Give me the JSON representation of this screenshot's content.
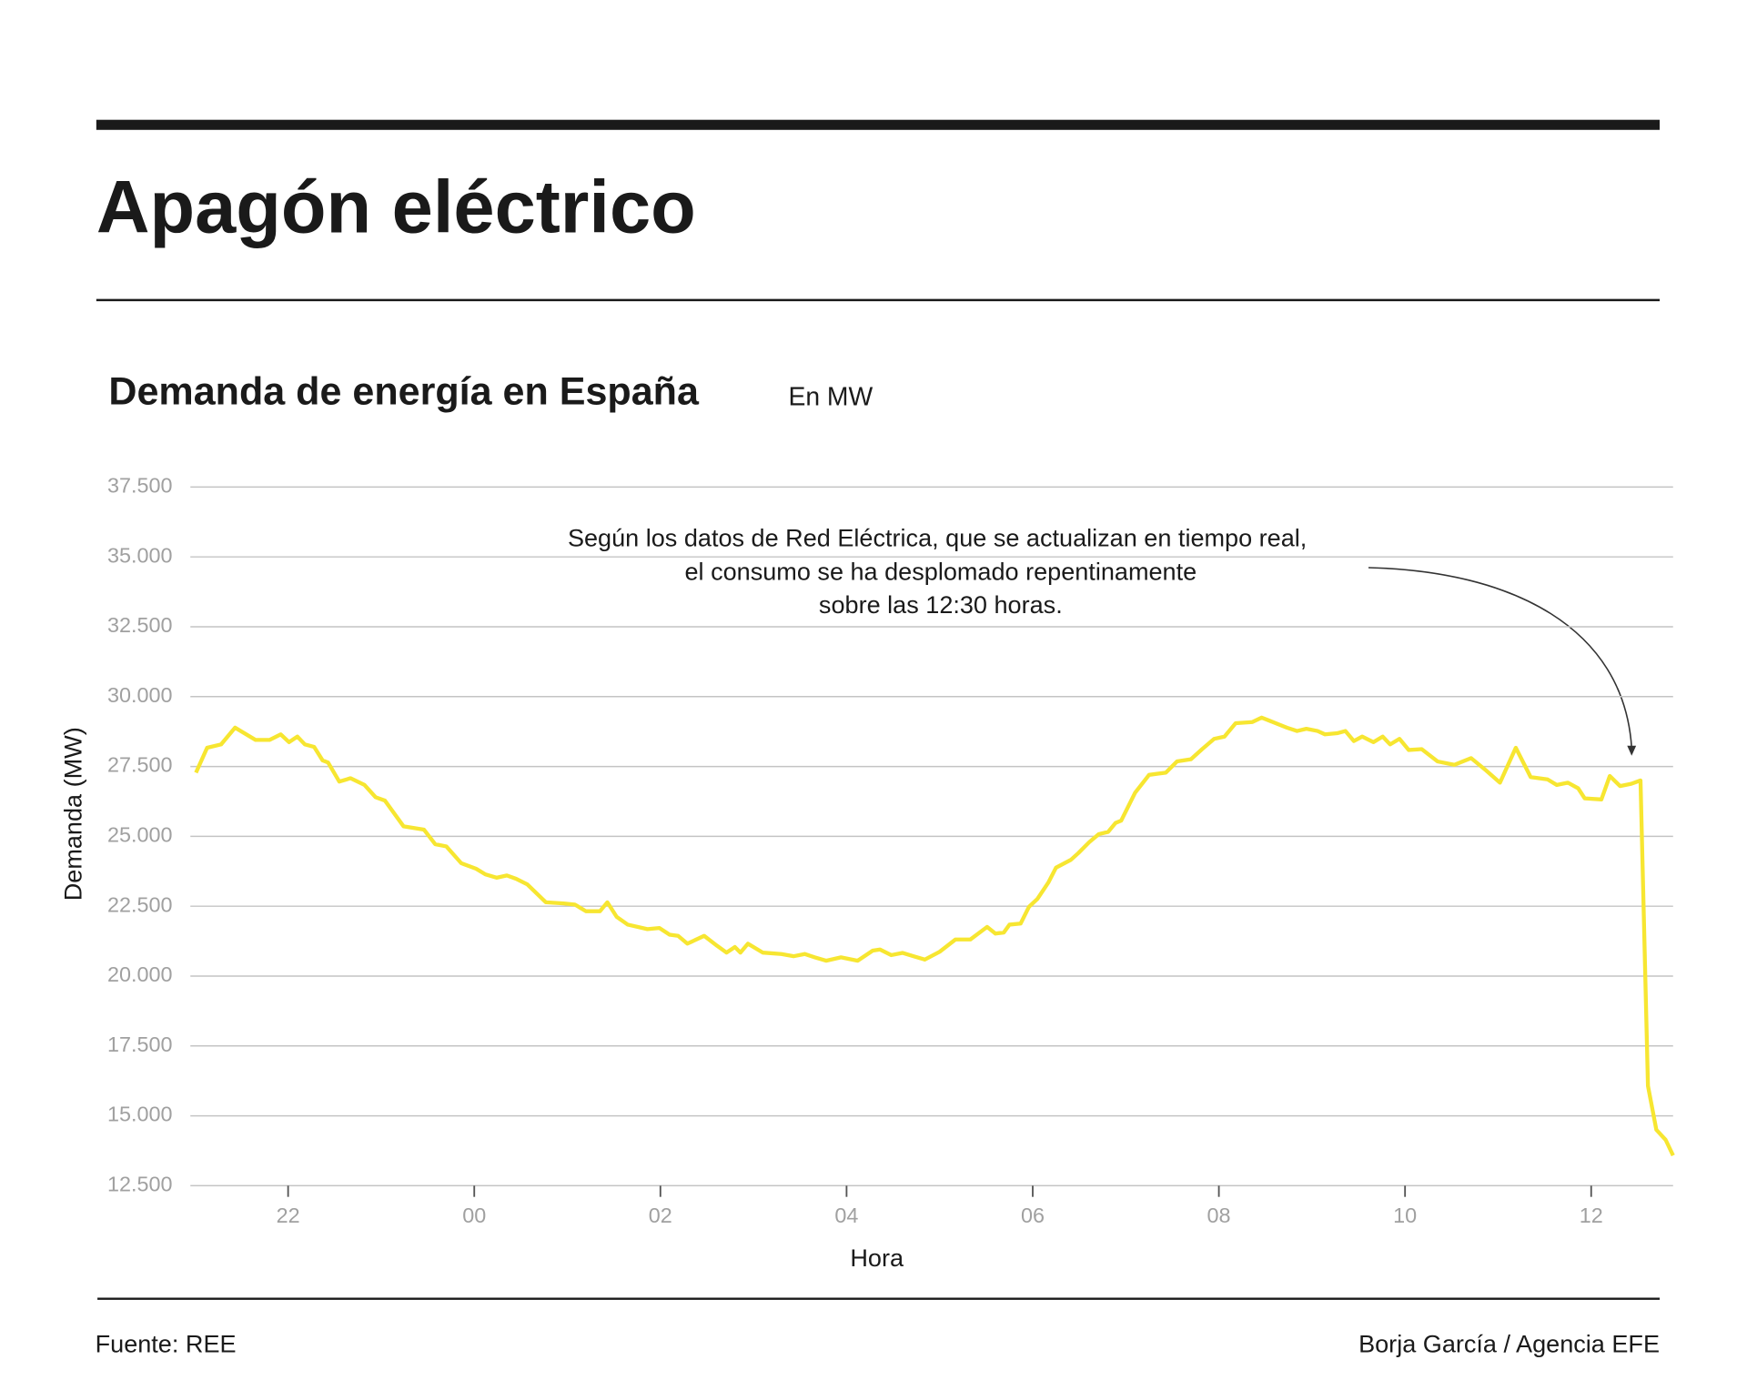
{
  "header": {
    "title": "Apagón eléctrico"
  },
  "footer": {
    "source": "Fuente: REE",
    "credit": "Borja García / Agencia EFE"
  },
  "chart_data": {
    "type": "line",
    "title": "Demanda de energía en España",
    "subtitle": "En MW",
    "xlabel": "Hora",
    "ylabel": "Demanda (MW)",
    "annotation": [
      "Según los datos de Red Eléctrica, que se actualizan en tiempo real,",
      "el consumo se ha desplomado repentinamente",
      "sobre las 12:30 horas."
    ],
    "color": "#f7e631",
    "grid": true,
    "xlim": [
      20.95,
      36.88
    ],
    "ylim": [
      12500,
      37500
    ],
    "xticks": [
      {
        "value": 22,
        "label": "22"
      },
      {
        "value": 24,
        "label": "00"
      },
      {
        "value": 26,
        "label": "02"
      },
      {
        "value": 28,
        "label": "04"
      },
      {
        "value": 30,
        "label": "06"
      },
      {
        "value": 32,
        "label": "08"
      },
      {
        "value": 34,
        "label": "10"
      },
      {
        "value": 36,
        "label": "12"
      }
    ],
    "yticks": [
      {
        "value": 12500,
        "label": "12.500"
      },
      {
        "value": 15000,
        "label": "15.000"
      },
      {
        "value": 17500,
        "label": "17.500"
      },
      {
        "value": 20000,
        "label": "20.000"
      },
      {
        "value": 22500,
        "label": "22.500"
      },
      {
        "value": 25000,
        "label": "25.000"
      },
      {
        "value": 27500,
        "label": "27.500"
      },
      {
        "value": 30000,
        "label": "30.000"
      },
      {
        "value": 32500,
        "label": "32.500"
      },
      {
        "value": 35000,
        "label": "35.000"
      },
      {
        "value": 37500,
        "label": "37.500"
      }
    ],
    "x": [
      21.01,
      21.13,
      21.28,
      21.43,
      21.65,
      21.8,
      21.92,
      22.01,
      22.1,
      22.18,
      22.28,
      22.37,
      22.43,
      22.55,
      22.67,
      22.82,
      22.94,
      23.04,
      23.24,
      23.46,
      23.58,
      23.7,
      23.86,
      24.02,
      24.12,
      24.24,
      24.35,
      24.45,
      24.57,
      24.77,
      24.96,
      25.08,
      25.2,
      25.35,
      25.43,
      25.53,
      25.65,
      25.86,
      25.99,
      26.1,
      26.19,
      26.29,
      26.47,
      26.61,
      26.71,
      26.8,
      26.86,
      26.94,
      27.1,
      27.3,
      27.43,
      27.55,
      27.66,
      27.78,
      27.94,
      28.12,
      28.28,
      28.36,
      28.48,
      28.6,
      28.72,
      28.84,
      29.0,
      29.17,
      29.33,
      29.51,
      29.6,
      29.69,
      29.75,
      29.87,
      29.96,
      30.05,
      30.17,
      30.25,
      30.41,
      30.49,
      30.61,
      30.71,
      30.81,
      30.89,
      30.95,
      31.1,
      31.25,
      31.43,
      31.55,
      31.7,
      31.82,
      31.95,
      32.06,
      32.18,
      32.36,
      32.46,
      32.58,
      32.73,
      32.84,
      32.94,
      33.06,
      33.14,
      33.27,
      33.36,
      33.45,
      33.54,
      33.66,
      33.76,
      33.84,
      33.94,
      34.04,
      34.18,
      34.35,
      34.53,
      34.71,
      34.87,
      35.02,
      35.19,
      35.35,
      35.53,
      35.63,
      35.75,
      35.86,
      35.93,
      36.11,
      36.2,
      36.31,
      36.43,
      36.53,
      36.61,
      36.7,
      36.8,
      36.88
    ],
    "values": [
      27280,
      28170,
      28290,
      28890,
      28450,
      28450,
      28650,
      28370,
      28570,
      28290,
      28200,
      27720,
      27640,
      26960,
      27080,
      26840,
      26400,
      26280,
      25360,
      25240,
      24720,
      24640,
      24040,
      23840,
      23640,
      23520,
      23600,
      23480,
      23280,
      22640,
      22600,
      22560,
      22320,
      22320,
      22640,
      22120,
      21840,
      21680,
      21720,
      21480,
      21440,
      21160,
      21440,
      21080,
      20840,
      21040,
      20840,
      21160,
      20840,
      20790,
      20710,
      20790,
      20670,
      20550,
      20670,
      20550,
      20910,
      20950,
      20750,
      20830,
      20710,
      20590,
      20870,
      21310,
      21310,
      21760,
      21520,
      21560,
      21840,
      21880,
      22480,
      22760,
      23360,
      23880,
      24160,
      24400,
      24800,
      25080,
      25160,
      25480,
      25560,
      26560,
      27200,
      27280,
      27680,
      27760,
      28120,
      28490,
      28570,
      29050,
      29090,
      29250,
      29090,
      28890,
      28770,
      28850,
      28770,
      28650,
      28690,
      28770,
      28410,
      28570,
      28370,
      28570,
      28290,
      28490,
      28090,
      28120,
      27680,
      27560,
      27800,
      27360,
      26920,
      28170,
      27120,
      27040,
      26840,
      26920,
      26720,
      26360,
      26320,
      27160,
      26800,
      26880,
      27000,
      16070,
      14500,
      14140,
      13580
    ]
  }
}
